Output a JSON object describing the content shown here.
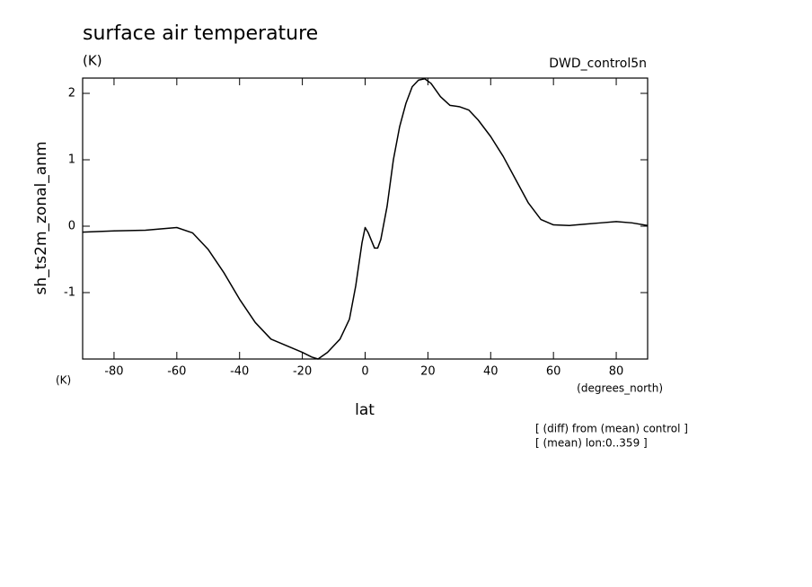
{
  "chart_data": {
    "type": "line",
    "title": "surface air temperature",
    "units": "(K)",
    "dataset": "DWD_control5n",
    "ylabel": "sh_ts2m_zonal_anm",
    "y_units": "(K)",
    "x_units": "(degrees_north)",
    "xlabel": "lat",
    "notes": [
      "[ (diff) from (mean) control ]",
      "[ (mean) lon:0..359 ]"
    ],
    "xlim": [
      -90,
      90
    ],
    "xticks": [
      -80,
      -60,
      -40,
      -20,
      0,
      20,
      40,
      60,
      80
    ],
    "ylim": [
      -2,
      2.23
    ],
    "yticks": [
      -1,
      0,
      1,
      2
    ],
    "color": "#000000",
    "series": [
      {
        "name": "sh_ts2m_zonal_anm",
        "color": "#000000",
        "x": [
          -90,
          -80,
          -70,
          -60,
          -55,
          -50,
          -45,
          -40,
          -35,
          -30,
          -25,
          -20,
          -17,
          -15,
          -12,
          -8,
          -5,
          -3,
          -1,
          0,
          1,
          3,
          4,
          5,
          7,
          9,
          11,
          13,
          15,
          17,
          19,
          21,
          24,
          27,
          30,
          33,
          36,
          40,
          44,
          48,
          52,
          56,
          60,
          65,
          70,
          75,
          80,
          85,
          90
        ],
        "values": [
          -0.09,
          -0.07,
          -0.06,
          -0.02,
          -0.1,
          -0.35,
          -0.7,
          -1.1,
          -1.45,
          -1.7,
          -1.8,
          -1.9,
          -1.97,
          -2.0,
          -1.9,
          -1.7,
          -1.4,
          -0.9,
          -0.25,
          -0.02,
          -0.1,
          -0.33,
          -0.33,
          -0.2,
          0.3,
          1.0,
          1.5,
          1.85,
          2.1,
          2.2,
          2.22,
          2.15,
          1.95,
          1.82,
          1.8,
          1.75,
          1.6,
          1.35,
          1.05,
          0.7,
          0.35,
          0.1,
          0.02,
          0.01,
          0.03,
          0.05,
          0.07,
          0.05,
          0.01
        ]
      }
    ]
  }
}
